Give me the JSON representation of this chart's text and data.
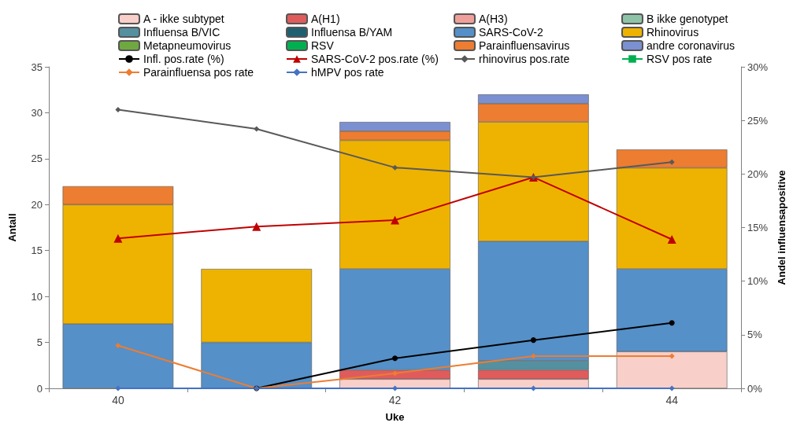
{
  "chart_data": {
    "type": "bar",
    "stacked": true,
    "xlabel": "Uke",
    "ylabel": "Antall",
    "y2label": "Andel influensapositive",
    "categories": [
      "40",
      null,
      "42",
      null,
      "44"
    ],
    "ylim": [
      0,
      35
    ],
    "yticks": [
      0,
      5,
      10,
      15,
      20,
      25,
      30,
      35
    ],
    "y2lim": [
      0,
      30
    ],
    "y2ticks": [
      {
        "value": 0,
        "label": "0%"
      },
      {
        "value": 5,
        "label": "5%"
      },
      {
        "value": 10,
        "label": "10%"
      },
      {
        "value": 15,
        "label": "15%"
      },
      {
        "value": 20,
        "label": "20%"
      },
      {
        "value": 25,
        "label": "25%"
      },
      {
        "value": 30,
        "label": "30%"
      }
    ],
    "grid": false,
    "legend": "top",
    "series": [
      {
        "name": "A - ikke subtypet",
        "color": "#f8cfc9",
        "values": [
          0,
          0,
          1,
          1,
          4
        ]
      },
      {
        "name": "A(H1)",
        "color": "#e05c5c",
        "values": [
          0,
          0,
          1,
          1,
          0
        ]
      },
      {
        "name": "A(H3)",
        "color": "#f0a09a",
        "values": [
          0,
          0,
          0,
          0,
          0
        ]
      },
      {
        "name": "B ikke genotypet",
        "color": "#8fc3a8",
        "values": [
          0,
          0,
          0,
          0,
          0
        ]
      },
      {
        "name": "Influensa B/VIC",
        "color": "#5590a0",
        "values": [
          0,
          0,
          0,
          1,
          0
        ]
      },
      {
        "name": "Influensa B/YAM",
        "color": "#1f6070",
        "values": [
          0,
          0,
          0,
          0,
          0
        ]
      },
      {
        "name": "SARS-CoV-2",
        "color": "#5590c8",
        "values": [
          7,
          5,
          11,
          13,
          9
        ]
      },
      {
        "name": "Rhinovirus",
        "color": "#eeb300",
        "values": [
          13,
          8,
          14,
          13,
          11
        ]
      },
      {
        "name": "Metapneumovirus",
        "color": "#70a840",
        "values": [
          0,
          0,
          0,
          0,
          0
        ]
      },
      {
        "name": "RSV",
        "color": "#00b050",
        "values": [
          0,
          0,
          0,
          0,
          0
        ]
      },
      {
        "name": "Parainfluensavirus",
        "color": "#ed7d31",
        "values": [
          2,
          0,
          1,
          2,
          2
        ]
      },
      {
        "name": "andre coronavirus",
        "color": "#7b90d0",
        "values": [
          0,
          0,
          1,
          1,
          0
        ]
      },
      {
        "name": "Infl. pos.rate (%)",
        "type": "line",
        "axis": "y2",
        "marker": "circle",
        "color": "#000000",
        "values": [
          null,
          0,
          2.8,
          4.5,
          6.1
        ]
      },
      {
        "name": "SARS-CoV-2 pos.rate (%)",
        "type": "line",
        "axis": "y2",
        "marker": "triangle",
        "color": "#c00000",
        "values": [
          14.0,
          15.1,
          15.7,
          19.7,
          13.9
        ]
      },
      {
        "name": "rhinovirus pos.rate",
        "type": "line",
        "axis": "y2",
        "marker": "diamond",
        "color": "#595959",
        "values": [
          26.0,
          24.2,
          20.6,
          19.7,
          21.1
        ]
      },
      {
        "name": "RSV pos rate",
        "type": "line",
        "axis": "y2",
        "marker": "square",
        "color": "#00b050",
        "values": [
          null,
          null,
          null,
          null,
          null
        ]
      },
      {
        "name": "Parainfluensa pos rate",
        "type": "line",
        "axis": "y2",
        "marker": "diamond",
        "color": "#ed7d31",
        "values": [
          4.0,
          0,
          1.4,
          3.0,
          3.0
        ]
      },
      {
        "name": "hMPV pos rate",
        "type": "line",
        "axis": "y2",
        "marker": "diamond",
        "color": "#4472c4",
        "values": [
          0,
          0,
          0,
          0,
          0
        ]
      }
    ]
  }
}
